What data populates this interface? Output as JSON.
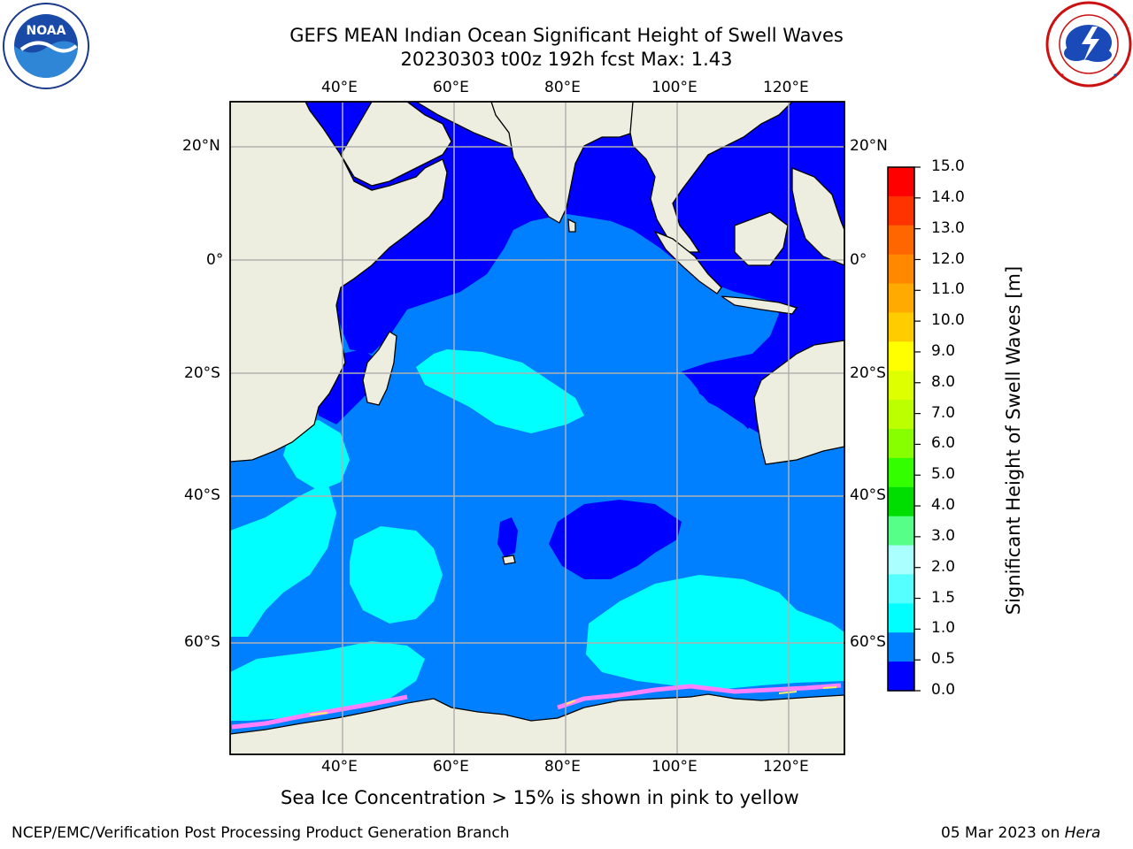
{
  "header": {
    "title_line1": "GEFS MEAN Indian Ocean Significant Height of Swell Waves",
    "title_line2": "20230303 t00z 192h fcst   Max: 1.43"
  },
  "logos": {
    "noaa_text": "NOAA",
    "noaa_ring_text": "NATIONAL OCEANIC AND ATMOSPHERIC ADMINISTRATION · U.S. DEPARTMENT OF COMMERCE",
    "nws_ring_text": "NATIONAL WEATHER SERVICE"
  },
  "map": {
    "lon_labels_top": [
      "40°E",
      "60°E",
      "80°E",
      "100°E",
      "120°E"
    ],
    "lon_labels_bottom": [
      "40°E",
      "60°E",
      "80°E",
      "100°E",
      "120°E"
    ],
    "lat_labels_left": [
      "20°N",
      "0°",
      "20°S",
      "40°S",
      "60°S"
    ],
    "lat_labels_right": [
      "20°N",
      "0°",
      "20°S",
      "40°S",
      "60°S"
    ],
    "colors": {
      "ocean_0_05": "#0000ff",
      "ocean_05_10": "#0080ff",
      "ocean_10_15": "#00ffff",
      "land": "#eeeee0",
      "sea_ice": "#ff80ff",
      "grid": "#b0b0b0"
    }
  },
  "colorbar": {
    "label": "Significant Height of Swell Waves [m]",
    "ticks": [
      "15.0",
      "14.0",
      "13.0",
      "12.0",
      "11.0",
      "10.0",
      "9.0",
      "8.0",
      "7.0",
      "6.0",
      "5.0",
      "4.0",
      "3.0",
      "2.0",
      "1.5",
      "1.0",
      "0.5",
      "0.0"
    ],
    "colors": [
      "#ff0000",
      "#ff3300",
      "#ff6600",
      "#ff8800",
      "#ffaa00",
      "#ffcc00",
      "#ffff00",
      "#ddff00",
      "#bbff00",
      "#88ff00",
      "#33ff00",
      "#00dd00",
      "#55ff88",
      "#aaffff",
      "#55ffff",
      "#00ffff",
      "#0080ff",
      "#0000ff"
    ]
  },
  "caption": "Sea Ice Concentration > 15% is shown in pink to yellow",
  "footer": {
    "left": "NCEP/EMC/Verification Post Processing Product Generation Branch",
    "right_date": "05 Mar 2023 on ",
    "right_host": "Hera"
  }
}
